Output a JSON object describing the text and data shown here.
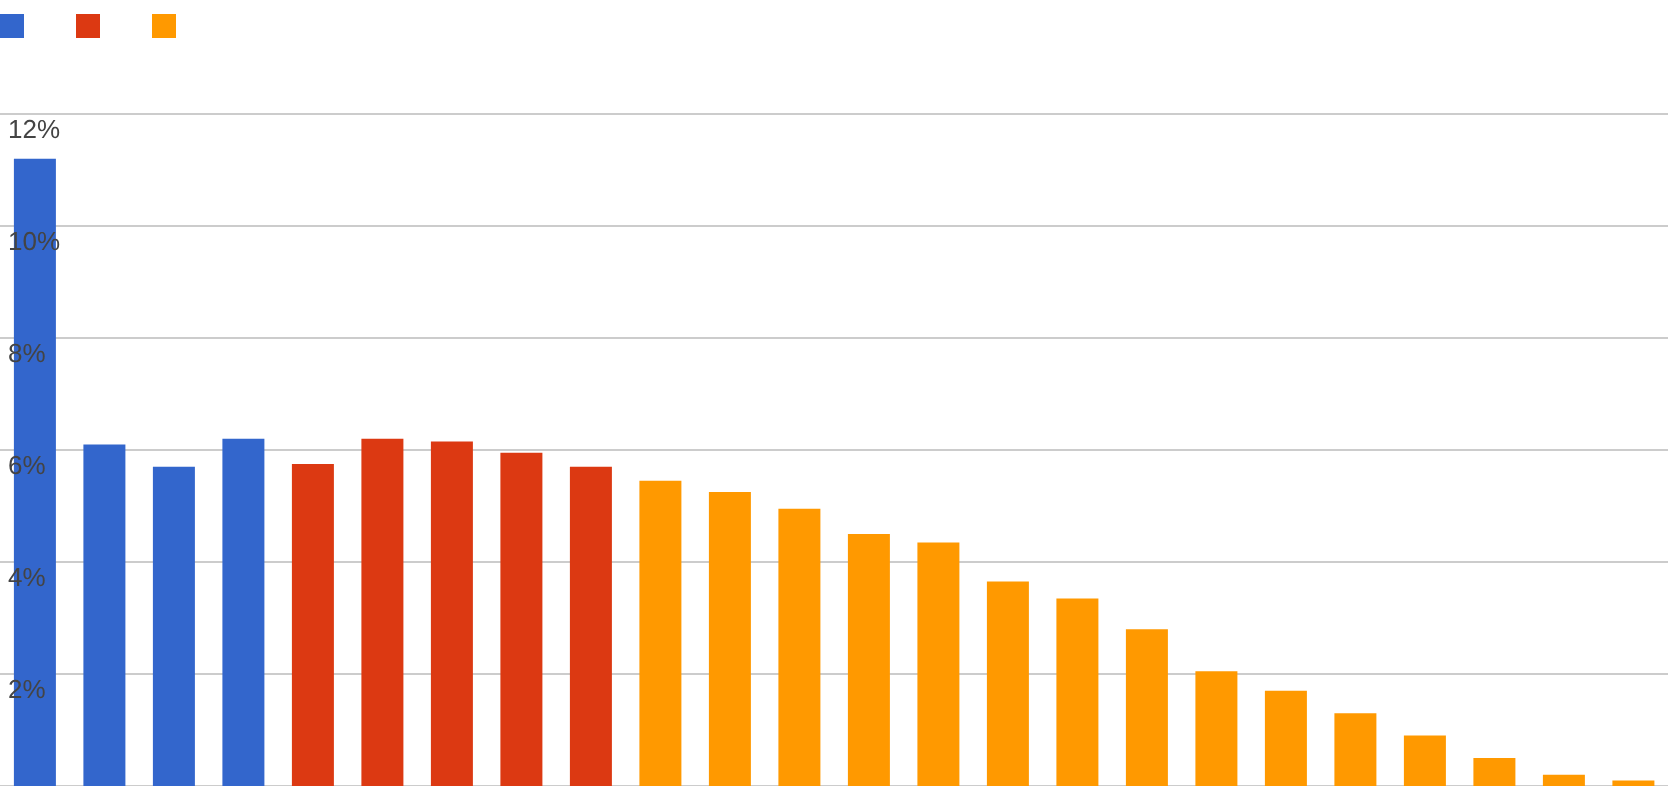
{
  "chart_data": {
    "type": "bar",
    "categories": [
      null,
      null,
      null,
      null,
      null,
      null,
      null,
      null,
      null,
      null,
      null,
      null,
      null,
      null,
      null,
      null,
      null,
      null,
      null,
      null,
      null,
      null,
      null,
      null
    ],
    "series": [
      {
        "color": "#3366cc",
        "values": [
          11.2,
          6.1,
          5.7,
          6.2,
          null,
          null,
          null,
          null,
          null,
          null,
          null,
          null,
          null,
          null,
          null,
          null,
          null,
          null,
          null,
          null,
          null,
          null,
          null,
          null
        ]
      },
      {
        "color": "#dc3912",
        "values": [
          null,
          null,
          null,
          null,
          5.75,
          6.2,
          6.15,
          5.95,
          5.7,
          null,
          null,
          null,
          null,
          null,
          null,
          null,
          null,
          null,
          null,
          null,
          null,
          null,
          null,
          null
        ]
      },
      {
        "color": "#ff9900",
        "values": [
          null,
          null,
          null,
          null,
          null,
          null,
          null,
          null,
          null,
          5.45,
          5.25,
          4.95,
          4.5,
          4.35,
          3.65,
          3.35,
          2.8,
          2.05,
          1.7,
          1.3,
          0.9,
          0.5,
          0.2,
          0.1
        ]
      }
    ],
    "ylim": [
      0,
      12
    ],
    "yticks": [
      {
        "value": 0,
        "label": null
      },
      {
        "value": 2,
        "label": "2%"
      },
      {
        "value": 4,
        "label": "4%"
      },
      {
        "value": 6,
        "label": "6%"
      },
      {
        "value": 8,
        "label": "8%"
      },
      {
        "value": 10,
        "label": "10%"
      },
      {
        "value": 12,
        "label": "12%"
      }
    ],
    "grid": "y",
    "tick_labels": "y"
  }
}
